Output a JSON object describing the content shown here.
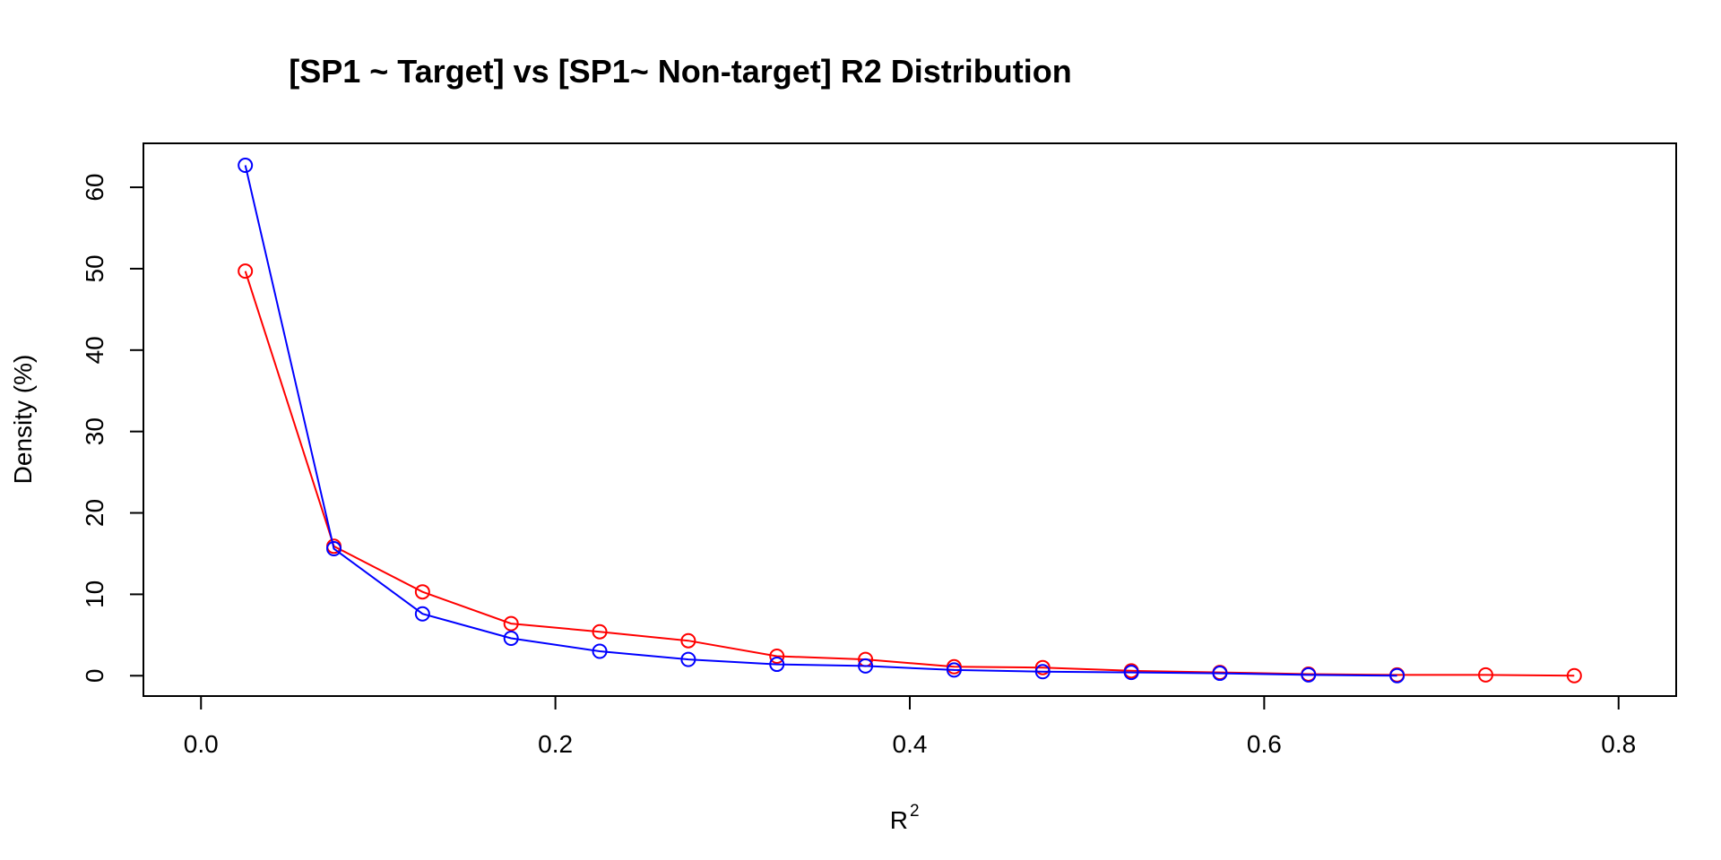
{
  "chart_data": {
    "type": "line",
    "title": "[SP1 ~ Target] vs [SP1~ Non-target] R2 Distribution",
    "xlabel": "R",
    "xlabel_superscript": "2",
    "ylabel": "Density (%)",
    "xlim": [
      -0.0325,
      0.8325
    ],
    "ylim": [
      -2.5,
      65.4
    ],
    "x_ticks": [
      0.0,
      0.2,
      0.4,
      0.6,
      0.8
    ],
    "x_tick_labels": [
      "0.0",
      "0.2",
      "0.4",
      "0.6",
      "0.8"
    ],
    "y_ticks": [
      0,
      10,
      20,
      30,
      40,
      50,
      60
    ],
    "y_tick_labels": [
      "0",
      "10",
      "20",
      "30",
      "40",
      "50",
      "60"
    ],
    "grid": false,
    "series": [
      {
        "color": "#ff0000",
        "marker": "open-circle",
        "x": [
          0.025,
          0.075,
          0.125,
          0.175,
          0.225,
          0.275,
          0.325,
          0.375,
          0.425,
          0.475,
          0.525,
          0.575,
          0.625,
          0.675,
          0.725,
          0.775
        ],
        "y": [
          49.7,
          15.9,
          10.3,
          6.4,
          5.4,
          4.3,
          2.4,
          2.0,
          1.1,
          1.0,
          0.6,
          0.4,
          0.2,
          0.1,
          0.1,
          0.0
        ]
      },
      {
        "color": "#0000ff",
        "marker": "open-circle",
        "x": [
          0.025,
          0.075,
          0.125,
          0.175,
          0.225,
          0.275,
          0.325,
          0.375,
          0.425,
          0.475,
          0.525,
          0.575,
          0.625,
          0.675
        ],
        "y": [
          62.7,
          15.6,
          7.6,
          4.6,
          3.0,
          2.0,
          1.4,
          1.2,
          0.7,
          0.5,
          0.4,
          0.3,
          0.1,
          0.0
        ]
      }
    ]
  }
}
